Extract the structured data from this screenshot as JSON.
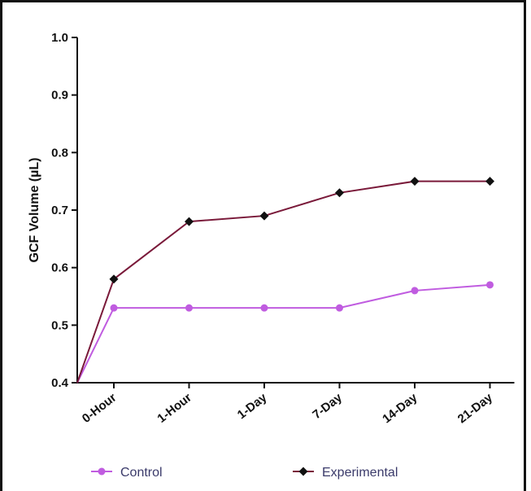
{
  "chart_data": {
    "type": "line",
    "title": "",
    "xlabel": "",
    "ylabel": "GCF Volume (µL)",
    "categories": [
      "0-Hour",
      "1-Hour",
      "1-Day",
      "7-Day",
      "14-Day",
      "21-Day"
    ],
    "ylim": [
      0.4,
      1.0
    ],
    "yticks": [
      "0.4",
      "0.5",
      "0.6",
      "0.7",
      "0.8",
      "0.9",
      "1.0"
    ],
    "grid": false,
    "legend_position": "bottom",
    "series": [
      {
        "name": "Control",
        "start_value": 0.4,
        "values": [
          0.53,
          0.53,
          0.53,
          0.53,
          0.56,
          0.57
        ],
        "color": "#c05ce0",
        "marker": "circle"
      },
      {
        "name": "Experimental",
        "start_value": 0.4,
        "values": [
          0.58,
          0.68,
          0.69,
          0.73,
          0.75,
          0.75
        ],
        "color": "#7a1a3a",
        "marker": "diamond"
      }
    ]
  }
}
